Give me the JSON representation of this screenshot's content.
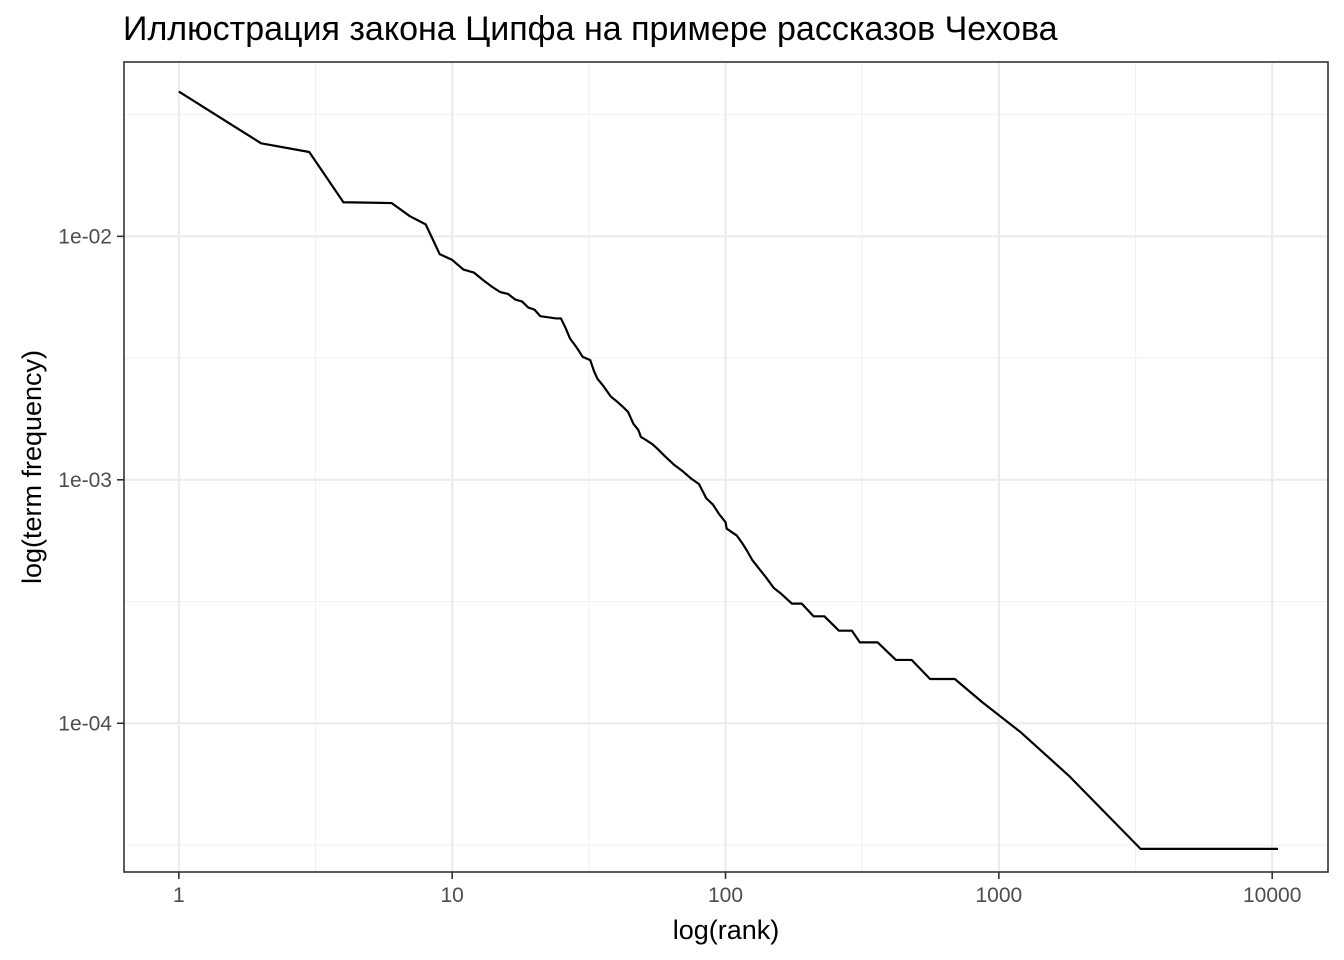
{
  "chart_data": {
    "type": "line",
    "title": "Иллюстрация закона Ципфа на примере рассказов Чехова",
    "xlabel": "log(rank)",
    "ylabel": "log(term frequency)",
    "x_scale": "log10",
    "y_scale": "log10",
    "xlim": [
      0.63,
      16000
    ],
    "ylim": [
      2.45e-05,
      0.052
    ],
    "x_ticks": [
      1,
      10,
      100,
      1000,
      10000
    ],
    "x_tick_labels": [
      "1",
      "10",
      "100",
      "1000",
      "10000"
    ],
    "y_ticks": [
      0.01,
      0.001,
      0.0001
    ],
    "y_tick_labels": [
      "1e-02",
      "1e-03",
      "1e-04"
    ],
    "grid": true,
    "legend": "none",
    "series": [
      {
        "color": "#000000",
        "x": [
          1,
          2,
          3,
          4,
          6,
          7,
          8,
          9,
          10,
          11,
          12,
          13,
          14,
          15,
          16,
          17,
          18,
          19,
          20,
          21,
          24,
          25,
          26,
          27,
          28,
          29,
          30,
          32,
          33,
          34,
          35,
          36,
          38,
          40,
          42,
          44,
          46,
          48,
          49,
          50,
          52,
          54,
          56,
          60,
          65,
          70,
          75,
          80,
          85,
          90,
          95,
          100,
          101,
          110,
          115,
          120,
          125,
          133,
          140,
          150,
          160,
          175,
          190,
          210,
          230,
          260,
          290,
          310,
          360,
          420,
          480,
          560,
          690,
          870,
          1200,
          1800,
          3300,
          10500
        ],
        "y": [
          0.0393,
          0.0241,
          0.0222,
          0.0138,
          0.0137,
          0.0121,
          0.0112,
          0.00845,
          0.008,
          0.0073,
          0.0071,
          0.0066,
          0.0062,
          0.0059,
          0.0058,
          0.0055,
          0.0054,
          0.0051,
          0.005,
          0.0047,
          0.0046,
          0.0046,
          0.0042,
          0.0038,
          0.0036,
          0.0034,
          0.0032,
          0.0031,
          0.0028,
          0.0026,
          0.0025,
          0.0024,
          0.0022,
          0.0021,
          0.002,
          0.0019,
          0.0017,
          0.0016,
          0.0015,
          0.00148,
          0.00144,
          0.0014,
          0.00135,
          0.00125,
          0.00115,
          0.00108,
          0.00101,
          0.00096,
          0.00084,
          0.00079,
          0.00072,
          0.00067,
          0.00063,
          0.00059,
          0.00055,
          0.00051,
          0.00047,
          0.00043,
          0.0004,
          0.00036,
          0.00034,
          0.00031,
          0.00031,
          0.000275,
          0.000275,
          0.00024,
          0.00024,
          0.000215,
          0.000215,
          0.000182,
          0.000182,
          0.000152,
          0.000152,
          0.000122,
          9.2e-05,
          6.1e-05,
          3.05e-05,
          3.05e-05
        ]
      }
    ]
  }
}
